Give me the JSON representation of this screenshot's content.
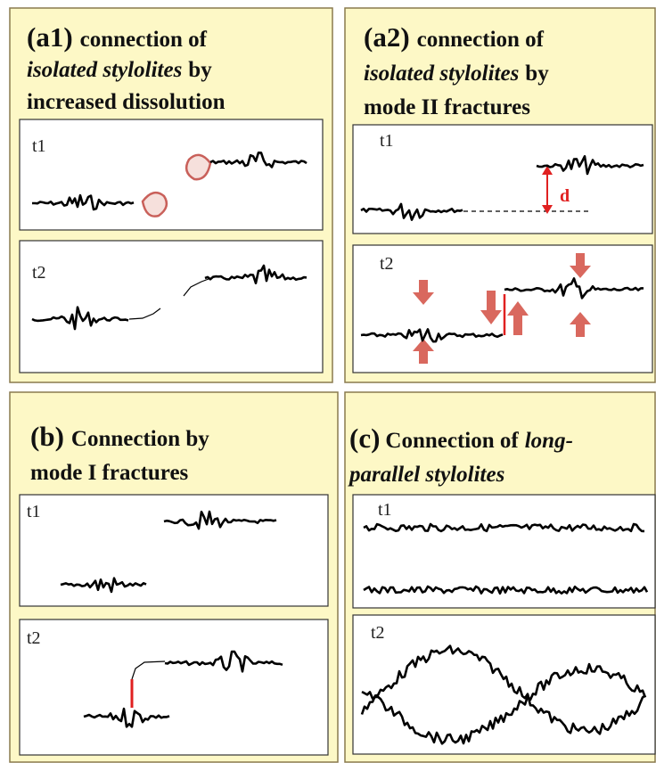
{
  "a1": {
    "label": "(a1)",
    "title": [
      "connection of",
      "isolated stylolites",
      "by",
      "increased dissolution"
    ],
    "t1": "t1",
    "t2": "t2"
  },
  "a2": {
    "label": "(a2)",
    "title": [
      "connection of",
      "isolated stylolites",
      "by",
      "mode II fractures"
    ],
    "t1": "t1",
    "t2": "t2",
    "offset": "d"
  },
  "b": {
    "label": "(b)",
    "title": [
      "Connection by",
      "mode I fractures"
    ],
    "t1": "t1",
    "t2": "t2"
  },
  "c": {
    "label": "(c)",
    "title": [
      "Connection of",
      "long-",
      "parallel stylolites"
    ],
    "t1": "t1",
    "t2": "t2"
  }
}
